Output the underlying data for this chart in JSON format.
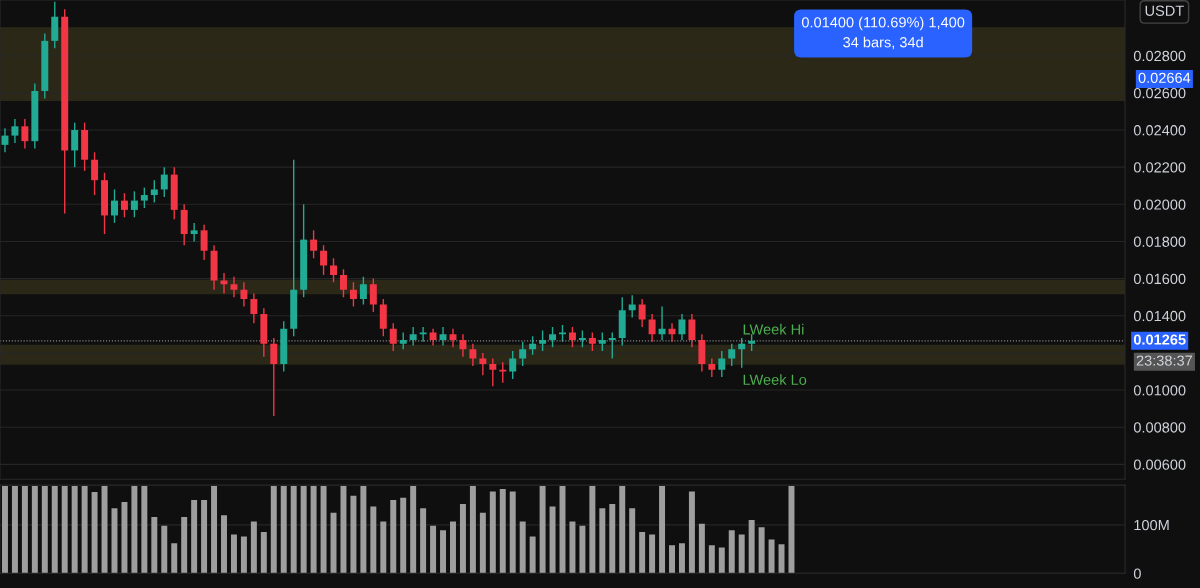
{
  "chart_data": [
    {
      "type": "candlestick",
      "categories": [
        null,
        null,
        null,
        null,
        null,
        null,
        null,
        null,
        null,
        null,
        null,
        null,
        null,
        null,
        null,
        null,
        null,
        null,
        null,
        null,
        null,
        null,
        null,
        null,
        null,
        null,
        null,
        null,
        null,
        null,
        null,
        null,
        null,
        null,
        null,
        null,
        null,
        null,
        null,
        null,
        null,
        null,
        null,
        null,
        null,
        null,
        null,
        null,
        null,
        null,
        null,
        null,
        null,
        null,
        null,
        null,
        null,
        null,
        null,
        null,
        null,
        null,
        null,
        null,
        null,
        null,
        null,
        null,
        null,
        null,
        null,
        null,
        null,
        null,
        null,
        null,
        null,
        null,
        null,
        null,
        null,
        null,
        null,
        null,
        null,
        null,
        null,
        null,
        null,
        null,
        null,
        null,
        null,
        null,
        null,
        null,
        null,
        null,
        null,
        null,
        null,
        null,
        null,
        null,
        null,
        null,
        null,
        null,
        null,
        null,
        null,
        null,
        null
      ],
      "ohlc": [
        [
          0.0232,
          0.0241,
          0.0228,
          0.0237
        ],
        [
          0.0237,
          0.0246,
          0.0233,
          0.0242
        ],
        [
          0.0242,
          0.0246,
          0.023,
          0.0234
        ],
        [
          0.0234,
          0.0265,
          0.023,
          0.0261
        ],
        [
          0.0261,
          0.0292,
          0.0257,
          0.0288
        ],
        [
          0.0288,
          0.0309,
          0.0284,
          0.0301
        ],
        [
          0.0301,
          0.0305,
          0.0195,
          0.0229
        ],
        [
          0.0229,
          0.0244,
          0.022,
          0.024
        ],
        [
          0.024,
          0.0244,
          0.0218,
          0.0224
        ],
        [
          0.0224,
          0.0228,
          0.0205,
          0.0213
        ],
        [
          0.0213,
          0.0217,
          0.0184,
          0.0194
        ],
        [
          0.0194,
          0.0208,
          0.019,
          0.0202
        ],
        [
          0.0202,
          0.0206,
          0.0193,
          0.0197
        ],
        [
          0.0197,
          0.0207,
          0.0193,
          0.0202
        ],
        [
          0.0202,
          0.0209,
          0.0198,
          0.0205
        ],
        [
          0.0205,
          0.0213,
          0.0201,
          0.0208
        ],
        [
          0.0208,
          0.022,
          0.0204,
          0.0216
        ],
        [
          0.0216,
          0.022,
          0.0192,
          0.0197
        ],
        [
          0.0197,
          0.02,
          0.0178,
          0.0184
        ],
        [
          0.0184,
          0.019,
          0.018,
          0.0186
        ],
        [
          0.0186,
          0.0189,
          0.017,
          0.0175
        ],
        [
          0.0175,
          0.0178,
          0.0154,
          0.0159
        ],
        [
          0.0159,
          0.0163,
          0.0152,
          0.0157
        ],
        [
          0.0157,
          0.0161,
          0.015,
          0.0154
        ],
        [
          0.0154,
          0.0158,
          0.0145,
          0.0149
        ],
        [
          0.0149,
          0.0152,
          0.0136,
          0.0141
        ],
        [
          0.0141,
          0.0144,
          0.0118,
          0.0125
        ],
        [
          0.0125,
          0.0128,
          0.0086,
          0.0114
        ],
        [
          0.0114,
          0.0137,
          0.011,
          0.0133
        ],
        [
          0.0133,
          0.0224,
          0.0129,
          0.0154
        ],
        [
          0.0154,
          0.02,
          0.015,
          0.0181
        ],
        [
          0.0181,
          0.0186,
          0.0171,
          0.0175
        ],
        [
          0.0175,
          0.0178,
          0.0162,
          0.0167
        ],
        [
          0.0167,
          0.0171,
          0.0158,
          0.0162
        ],
        [
          0.0162,
          0.0165,
          0.015,
          0.0154
        ],
        [
          0.0154,
          0.0158,
          0.0145,
          0.0149
        ],
        [
          0.0149,
          0.0161,
          0.0146,
          0.0157
        ],
        [
          0.0157,
          0.016,
          0.0142,
          0.0146
        ],
        [
          0.0146,
          0.0149,
          0.0129,
          0.0133
        ],
        [
          0.0133,
          0.0136,
          0.0121,
          0.0125
        ],
        [
          0.0125,
          0.0131,
          0.0122,
          0.0127
        ],
        [
          0.0127,
          0.0134,
          0.0124,
          0.013
        ],
        [
          0.013,
          0.0134,
          0.0126,
          0.0131
        ],
        [
          0.0131,
          0.0133,
          0.0124,
          0.0127
        ],
        [
          0.0127,
          0.0134,
          0.0124,
          0.013
        ],
        [
          0.013,
          0.0133,
          0.0123,
          0.0127
        ],
        [
          0.0127,
          0.013,
          0.0118,
          0.0122
        ],
        [
          0.0122,
          0.0125,
          0.0113,
          0.0117
        ],
        [
          0.0117,
          0.012,
          0.0108,
          0.0114
        ],
        [
          0.0114,
          0.0117,
          0.0102,
          0.0111
        ],
        [
          0.0111,
          0.0115,
          0.0104,
          0.011
        ],
        [
          0.011,
          0.0121,
          0.0106,
          0.0117
        ],
        [
          0.0117,
          0.0126,
          0.0113,
          0.0122
        ],
        [
          0.0122,
          0.0129,
          0.0119,
          0.0125
        ],
        [
          0.0125,
          0.0132,
          0.0121,
          0.0127
        ],
        [
          0.0127,
          0.0134,
          0.0123,
          0.013
        ],
        [
          0.013,
          0.0135,
          0.0126,
          0.0131
        ],
        [
          0.0131,
          0.0134,
          0.0123,
          0.0127
        ],
        [
          0.0127,
          0.0132,
          0.0123,
          0.0128
        ],
        [
          0.0128,
          0.0131,
          0.0121,
          0.0125
        ],
        [
          0.0125,
          0.0131,
          0.0121,
          0.0127
        ],
        [
          0.0127,
          0.0131,
          0.0117,
          0.0128
        ],
        [
          0.0128,
          0.015,
          0.0124,
          0.0143
        ],
        [
          0.0143,
          0.0151,
          0.0139,
          0.0146
        ],
        [
          0.0146,
          0.0149,
          0.0134,
          0.0138
        ],
        [
          0.0138,
          0.0141,
          0.0126,
          0.013
        ],
        [
          0.013,
          0.0145,
          0.0127,
          0.0133
        ],
        [
          0.0133,
          0.0136,
          0.0126,
          0.013
        ],
        [
          0.013,
          0.0141,
          0.0127,
          0.0138
        ],
        [
          0.0138,
          0.0141,
          0.0123,
          0.0127
        ],
        [
          0.0127,
          0.013,
          0.011,
          0.0114
        ],
        [
          0.0114,
          0.0117,
          0.0107,
          0.0111
        ],
        [
          0.0111,
          0.0121,
          0.0107,
          0.0117
        ],
        [
          0.0117,
          0.0125,
          0.0113,
          0.0122
        ],
        [
          0.0122,
          0.0128,
          0.0112,
          0.0125
        ],
        [
          0.0125,
          0.013,
          0.0121,
          0.01265
        ],
        null,
        null,
        null,
        null,
        null,
        null,
        null,
        null,
        null,
        null,
        null,
        null,
        null,
        null,
        null,
        null,
        null,
        null,
        null,
        null,
        null,
        null,
        null,
        null,
        null,
        null,
        null,
        null,
        null,
        null,
        null,
        null,
        null,
        null,
        null,
        null,
        null
      ],
      "colors": [
        "#22ab94",
        "#22ab94",
        "#f23645",
        "#22ab94",
        "#22ab94",
        "#22ab94",
        "#f23645",
        "#22ab94",
        "#f23645",
        "#f23645",
        "#f23645",
        "#22ab94",
        "#f23645",
        "#22ab94",
        "#22ab94",
        "#22ab94",
        "#22ab94",
        "#f23645",
        "#f23645",
        "#22ab94",
        "#f23645",
        "#f23645",
        "#f23645",
        "#f23645",
        "#f23645",
        "#f23645",
        "#f23645",
        "#f23645",
        "#22ab94",
        "#22ab94",
        "#22ab94",
        "#f23645",
        "#f23645",
        "#f23645",
        "#f23645",
        "#f23645",
        "#22ab94",
        "#f23645",
        "#f23645",
        "#f23645",
        "#22ab94",
        "#22ab94",
        "#22ab94",
        "#f23645",
        "#22ab94",
        "#f23645",
        "#f23645",
        "#f23645",
        "#f23645",
        "#f23645",
        "#f23645",
        "#22ab94",
        "#22ab94",
        "#22ab94",
        "#22ab94",
        "#22ab94",
        "#22ab94",
        "#f23645",
        "#22ab94",
        "#f23645",
        "#22ab94",
        "#22ab94",
        "#22ab94",
        "#22ab94",
        "#f23645",
        "#f23645",
        "#22ab94",
        "#f23645",
        "#22ab94",
        "#f23645",
        "#f23645",
        "#f23645",
        "#22ab94",
        "#22ab94",
        "#22ab94",
        "#22ab94",
        null,
        null,
        null,
        null,
        null,
        null,
        null,
        null,
        null,
        null,
        null,
        null,
        null,
        null,
        null,
        null,
        null,
        null,
        null,
        null,
        null,
        null,
        null,
        null,
        null,
        null,
        null,
        null,
        null,
        null,
        null,
        null,
        null,
        null,
        null,
        null,
        null
      ],
      "ylim": [
        0.0052,
        0.031
      ],
      "yticks": [
        {
          "value": 0.006,
          "label": "0.00600"
        },
        {
          "value": 0.008,
          "label": "0.00800"
        },
        {
          "value": 0.01,
          "label": "0.01000"
        },
        {
          "value": 0.012,
          "label": null
        },
        {
          "value": 0.014,
          "label": "0.01400"
        },
        {
          "value": 0.016,
          "label": "0.01600"
        },
        {
          "value": 0.018,
          "label": "0.01800"
        },
        {
          "value": 0.02,
          "label": "0.02000"
        },
        {
          "value": 0.022,
          "label": "0.02200"
        },
        {
          "value": 0.024,
          "label": "0.02400"
        },
        {
          "value": 0.026,
          "label": "0.02600"
        },
        {
          "value": 0.028,
          "label": "0.02800"
        }
      ],
      "bands": [
        {
          "axis": "y",
          "from": 0.0256,
          "to": 0.0295,
          "color": "#2b2818"
        },
        {
          "axis": "y",
          "from": 0.0152,
          "to": 0.0159,
          "color": "#2b2818"
        },
        {
          "axis": "y",
          "from": 0.0114,
          "to": 0.0124,
          "color": "#2b2818"
        }
      ],
      "ref_lines": [
        {
          "axis": "y",
          "value": 0.01265,
          "label": "0.01265",
          "color": "#8a8a8a",
          "line_style": "dotted"
        }
      ],
      "annotations": [
        "0.01400 (110.69%) 1,400\n34 bars, 34d",
        "USDT",
        "23:38:37",
        "0.02664",
        "LWeek Hi",
        "LWeek Lo"
      ],
      "grid": "y",
      "tick_labels": "y"
    },
    {
      "type": "bar",
      "categories": [
        null,
        null,
        null,
        null,
        null,
        null,
        null,
        null,
        null,
        null,
        null,
        null,
        null,
        null,
        null,
        null,
        null,
        null,
        null,
        null,
        null,
        null,
        null,
        null,
        null,
        null,
        null,
        null,
        null,
        null,
        null,
        null,
        null,
        null,
        null,
        null,
        null,
        null,
        null,
        null,
        null,
        null,
        null,
        null,
        null,
        null,
        null,
        null,
        null,
        null,
        null,
        null,
        null,
        null,
        null,
        null,
        null,
        null,
        null,
        null,
        null,
        null,
        null,
        null,
        null,
        null,
        null,
        null,
        null,
        null,
        null,
        null,
        null,
        null,
        null,
        null,
        null,
        null,
        null,
        null,
        null,
        null,
        null,
        null,
        null,
        null,
        null,
        null,
        null,
        null,
        null,
        null,
        null,
        null,
        null,
        null,
        null,
        null,
        null,
        null,
        null,
        null,
        null,
        null,
        null,
        null,
        null,
        null,
        null,
        null,
        null,
        null,
        null
      ],
      "values": [
        180,
        180,
        180,
        180,
        180,
        180,
        180,
        180,
        180,
        168,
        180,
        134,
        147,
        180,
        180,
        116,
        98,
        62,
        116,
        151,
        151,
        180,
        120,
        80,
        76,
        107,
        85,
        180,
        180,
        180,
        180,
        180,
        180,
        125,
        180,
        160,
        180,
        138,
        107,
        151,
        156,
        180,
        134,
        98,
        89,
        107,
        143,
        180,
        125,
        169,
        174,
        169,
        107,
        76,
        180,
        138,
        180,
        107,
        98,
        180,
        134,
        143,
        180,
        134,
        85,
        80,
        180,
        58,
        62,
        169,
        102,
        58,
        53,
        89,
        80,
        110,
        95,
        70,
        60,
        180,
        null,
        null,
        null,
        null,
        null,
        null,
        null,
        null,
        null,
        null,
        null,
        null,
        null,
        null,
        null,
        null,
        null,
        null,
        null,
        null,
        null,
        null,
        null,
        null,
        null,
        null,
        null,
        null,
        null,
        null,
        null,
        null,
        null
      ],
      "color": "#9e9e9e",
      "ylim": [
        0,
        182
      ],
      "yticks": [
        {
          "value": 0,
          "label": "0"
        },
        {
          "value": 100,
          "label": "100M"
        }
      ],
      "grid": "y",
      "tick_labels": "y"
    }
  ]
}
